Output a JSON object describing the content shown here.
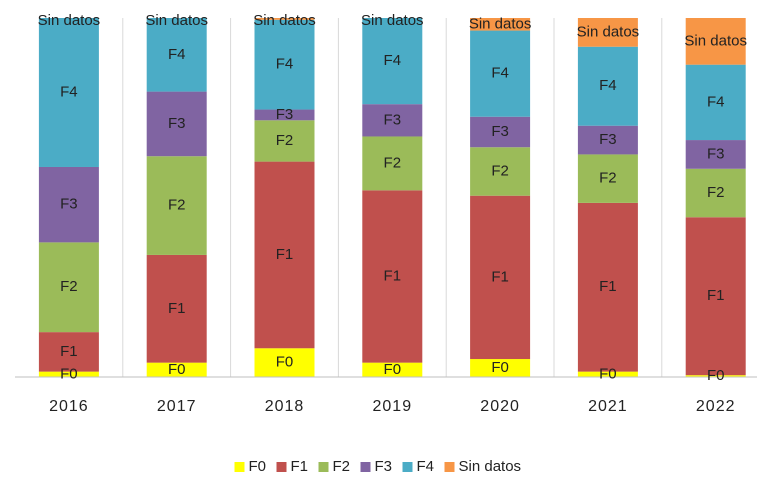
{
  "chart_data": {
    "type": "bar",
    "stacked": true,
    "categories": [
      "2016",
      "2017",
      "2018",
      "2019",
      "2020",
      "2021",
      "2022"
    ],
    "series": [
      {
        "name": "F0",
        "color": "#ffff00",
        "values": [
          1.5,
          4,
          8,
          4,
          5,
          1.5,
          0.5
        ]
      },
      {
        "name": "F1",
        "color": "#c0504d",
        "values": [
          11,
          30,
          52,
          48,
          45.5,
          47,
          44
        ]
      },
      {
        "name": "F2",
        "color": "#9bbb59",
        "values": [
          25,
          27.5,
          11.5,
          15,
          13.5,
          13.5,
          13.5
        ]
      },
      {
        "name": "F3",
        "color": "#8064a2",
        "values": [
          21,
          18,
          3,
          9,
          8.5,
          8,
          8
        ]
      },
      {
        "name": "F4",
        "color": "#4bacc6",
        "values": [
          41.5,
          20.5,
          25,
          24,
          24,
          22,
          21
        ]
      },
      {
        "name": "Sin datos",
        "color": "#f79646",
        "values": [
          0,
          0,
          0.5,
          0,
          3.5,
          8,
          13
        ]
      }
    ],
    "ylim": [
      0,
      100
    ],
    "legend": "bottom"
  }
}
